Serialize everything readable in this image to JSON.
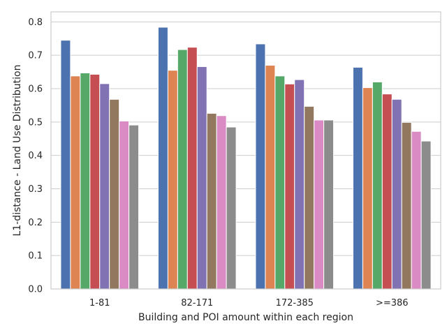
{
  "chart_data": {
    "type": "bar",
    "title": "",
    "xlabel": "Building and POI amount within each region",
    "ylabel": "L1-distance - Land Use Distribution",
    "categories": [
      "1-81",
      "82-171",
      "172-385",
      ">=386"
    ],
    "ylim": [
      0,
      0.83
    ],
    "yticks": [
      0.0,
      0.1,
      0.2,
      0.3,
      0.4,
      0.5,
      0.6,
      0.7,
      0.8
    ],
    "ytick_labels": [
      "0.0",
      "0.1",
      "0.2",
      "0.3",
      "0.4",
      "0.5",
      "0.6",
      "0.7",
      "0.8"
    ],
    "grid": "horizontal",
    "legend": "none",
    "series": [
      {
        "color": "#4c72b0",
        "values": [
          0.745,
          0.784,
          0.734,
          0.664
        ]
      },
      {
        "color": "#dd8452",
        "values": [
          0.638,
          0.655,
          0.67,
          0.603
        ]
      },
      {
        "color": "#55a868",
        "values": [
          0.647,
          0.717,
          0.638,
          0.62
        ]
      },
      {
        "color": "#c44e52",
        "values": [
          0.643,
          0.724,
          0.614,
          0.584
        ]
      },
      {
        "color": "#8172b3",
        "values": [
          0.615,
          0.666,
          0.627,
          0.568
        ]
      },
      {
        "color": "#937860",
        "values": [
          0.568,
          0.526,
          0.547,
          0.499
        ]
      },
      {
        "color": "#da8bc3",
        "values": [
          0.503,
          0.519,
          0.506,
          0.472
        ]
      },
      {
        "color": "#8c8c8c",
        "values": [
          0.491,
          0.485,
          0.506,
          0.443
        ]
      }
    ]
  }
}
